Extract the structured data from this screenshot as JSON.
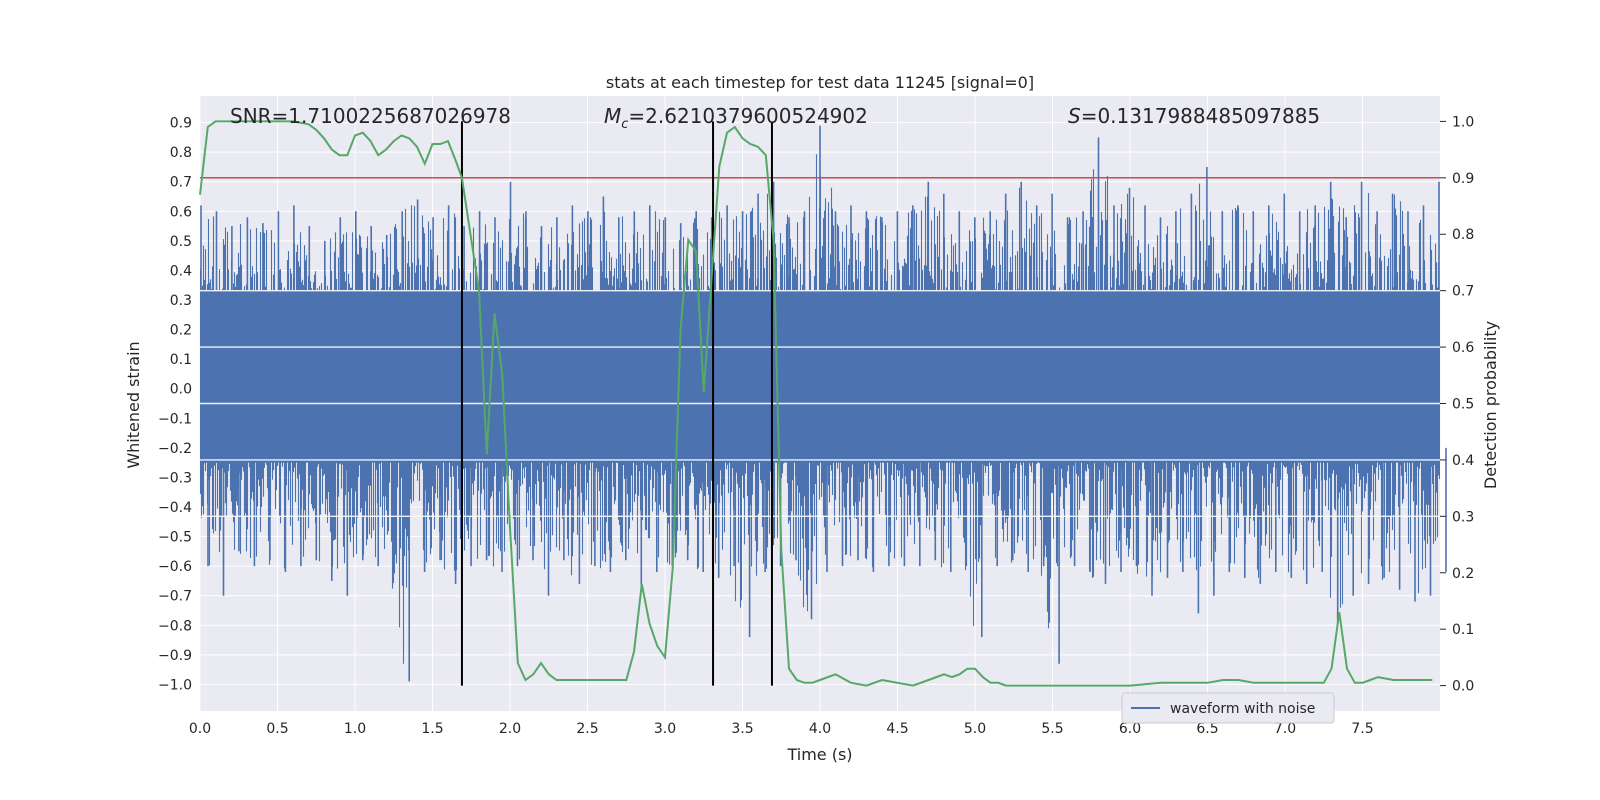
{
  "chart_data": {
    "type": "line",
    "title": "stats at each timestep for test data 11245 [signal=0]",
    "xlabel": "Time (s)",
    "ylabel": "Whitened strain",
    "y2label": "Detection probability",
    "xlim": [
      0.0,
      8.0
    ],
    "ylim": [
      -1.09,
      0.99
    ],
    "y2lim": [
      -0.045,
      1.045
    ],
    "xticks": [
      "0.0",
      "0.5",
      "1.0",
      "1.5",
      "2.0",
      "2.5",
      "3.0",
      "3.5",
      "4.0",
      "4.5",
      "5.0",
      "5.5",
      "6.0",
      "6.5",
      "7.0",
      "7.5"
    ],
    "yticks": [
      "0.9",
      "0.8",
      "0.7",
      "0.6",
      "0.5",
      "0.4",
      "0.3",
      "0.2",
      "0.1",
      "0.0",
      "−0.1",
      "−0.2",
      "−0.3",
      "−0.4",
      "−0.5",
      "−0.6",
      "−0.7",
      "−0.8",
      "−0.9",
      "−1.0"
    ],
    "y2ticks": [
      "1.0",
      "0.9",
      "0.8",
      "0.7",
      "0.6",
      "0.5",
      "0.4",
      "0.3",
      "0.2",
      "0.1",
      "0.0"
    ],
    "grid": true,
    "legend_location": "lower-right",
    "annotations": {
      "snr": "SNR=1.7100225687026978",
      "mc_symbol": "M",
      "mc_subscript": "c",
      "mc_value": "=2.6210379600524902",
      "s_symbol": "S",
      "s_value": "=0.1317988485097885"
    },
    "threshold": 0.9,
    "vertical_lines": [
      1.69,
      3.31,
      3.69
    ],
    "series": [
      {
        "name": "waveform with noise",
        "color": "#4c72b0",
        "note": "dense noise waveform between envelopes",
        "envelope_upper": [
          0.62,
          0.6,
          0.55,
          0.58,
          0.56,
          0.6,
          0.62,
          0.55,
          0.5,
          0.58,
          0.6,
          0.55,
          0.52,
          0.6,
          0.64,
          0.58,
          0.62,
          0.55,
          0.6,
          0.58,
          0.7,
          0.6,
          0.55,
          0.58,
          0.62,
          0.6,
          0.65,
          0.58,
          0.6,
          0.62,
          0.58,
          0.56,
          0.6,
          0.58,
          0.62,
          0.6,
          0.66,
          0.7,
          0.58,
          0.6,
          0.89,
          0.6,
          0.62,
          0.6,
          0.58,
          0.6,
          0.62,
          0.7,
          0.66,
          0.6,
          0.58,
          0.6,
          0.66,
          0.7,
          0.62,
          0.66,
          0.58,
          0.6,
          0.85,
          0.62,
          0.68,
          0.62,
          0.58,
          0.6,
          0.66,
          0.75,
          0.6,
          0.62,
          0.6,
          0.62,
          0.66,
          0.6,
          0.62,
          0.7,
          0.58,
          0.7,
          0.6,
          0.66,
          0.6,
          0.62,
          0.7
        ],
        "envelope_lower": [
          -0.6,
          -0.7,
          -0.55,
          -0.6,
          -0.58,
          -0.62,
          -0.6,
          -0.58,
          -0.65,
          -0.7,
          -0.58,
          -0.6,
          -0.55,
          -0.99,
          -0.62,
          -0.58,
          -0.66,
          -0.6,
          -0.58,
          -0.62,
          -0.6,
          -0.58,
          -0.7,
          -0.58,
          -0.66,
          -0.6,
          -0.62,
          -0.58,
          -0.68,
          -0.62,
          -0.6,
          -0.58,
          -0.62,
          -0.64,
          -0.6,
          -0.84,
          -0.62,
          -0.6,
          -0.58,
          -0.78,
          -0.62,
          -0.6,
          -0.58,
          -0.62,
          -0.6,
          -0.6,
          -0.6,
          -0.58,
          -0.62,
          -0.6,
          -0.84,
          -0.6,
          -0.58,
          -0.62,
          -0.6,
          -0.93,
          -0.6,
          -0.62,
          -0.66,
          -0.62,
          -0.6,
          -0.7,
          -0.64,
          -0.62,
          -0.76,
          -0.7,
          -0.62,
          -0.64,
          -0.66,
          -0.62,
          -0.64,
          -0.66,
          -0.62,
          -0.8,
          -0.7,
          -0.66,
          -0.64,
          -0.68,
          -0.72,
          -0.7,
          -0.62
        ]
      },
      {
        "name": "detection probability",
        "color": "#55a868",
        "axis": "right",
        "x": [
          0.0,
          0.05,
          0.1,
          0.15,
          0.2,
          0.3,
          0.4,
          0.5,
          0.6,
          0.7,
          0.75,
          0.8,
          0.85,
          0.9,
          0.95,
          1.0,
          1.05,
          1.1,
          1.15,
          1.2,
          1.25,
          1.3,
          1.35,
          1.4,
          1.45,
          1.5,
          1.55,
          1.6,
          1.65,
          1.69,
          1.75,
          1.8,
          1.85,
          1.9,
          1.95,
          2.0,
          2.05,
          2.1,
          2.15,
          2.2,
          2.25,
          2.3,
          2.4,
          2.5,
          2.6,
          2.7,
          2.75,
          2.8,
          2.85,
          2.9,
          2.95,
          3.0,
          3.05,
          3.1,
          3.15,
          3.2,
          3.25,
          3.3,
          3.35,
          3.4,
          3.45,
          3.5,
          3.55,
          3.6,
          3.65,
          3.7,
          3.75,
          3.8,
          3.85,
          3.9,
          3.95,
          4.0,
          4.1,
          4.2,
          4.3,
          4.4,
          4.5,
          4.6,
          4.7,
          4.8,
          4.85,
          4.9,
          4.95,
          5.0,
          5.05,
          5.1,
          5.15,
          5.2,
          5.3,
          5.4,
          5.5,
          5.6,
          5.8,
          6.0,
          6.2,
          6.4,
          6.5,
          6.6,
          6.7,
          6.8,
          6.9,
          7.0,
          7.1,
          7.2,
          7.25,
          7.3,
          7.35,
          7.4,
          7.45,
          7.5,
          7.55,
          7.6,
          7.7,
          7.8,
          7.9,
          7.95
        ],
        "y": [
          0.87,
          0.99,
          1.0,
          1.0,
          1.0,
          1.0,
          1.0,
          1.0,
          1.0,
          0.995,
          0.985,
          0.97,
          0.95,
          0.94,
          0.94,
          0.975,
          0.98,
          0.965,
          0.94,
          0.95,
          0.965,
          0.975,
          0.97,
          0.955,
          0.925,
          0.96,
          0.96,
          0.965,
          0.93,
          0.9,
          0.79,
          0.7,
          0.41,
          0.66,
          0.55,
          0.28,
          0.04,
          0.01,
          0.02,
          0.04,
          0.02,
          0.01,
          0.01,
          0.01,
          0.01,
          0.01,
          0.01,
          0.06,
          0.18,
          0.11,
          0.07,
          0.05,
          0.21,
          0.63,
          0.79,
          0.77,
          0.52,
          0.72,
          0.92,
          0.98,
          0.99,
          0.97,
          0.96,
          0.955,
          0.94,
          0.79,
          0.24,
          0.03,
          0.01,
          0.005,
          0.005,
          0.01,
          0.02,
          0.005,
          0.0,
          0.01,
          0.005,
          0.0,
          0.01,
          0.02,
          0.015,
          0.02,
          0.03,
          0.03,
          0.015,
          0.005,
          0.005,
          0.0,
          0.0,
          0.0,
          0.0,
          0.0,
          0.0,
          0.0,
          0.005,
          0.005,
          0.005,
          0.01,
          0.01,
          0.005,
          0.005,
          0.005,
          0.005,
          0.005,
          0.005,
          0.03,
          0.13,
          0.03,
          0.005,
          0.005,
          0.01,
          0.015,
          0.01,
          0.01,
          0.01,
          0.01
        ]
      }
    ]
  }
}
